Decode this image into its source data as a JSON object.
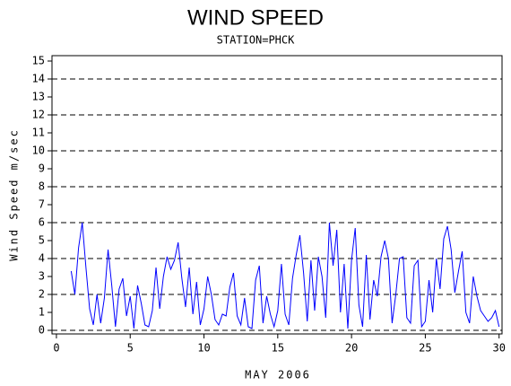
{
  "chart_data": {
    "type": "line",
    "title": "WIND SPEED",
    "subtitle": "STATION=PHCK",
    "y_label": "Wind Speed m/sec",
    "x_label": "MAY 2006",
    "xlim": [
      -0.3,
      30.2
    ],
    "xticks": [
      0,
      5,
      10,
      15,
      20,
      25,
      30
    ],
    "ylim": [
      -0.2,
      15.3
    ],
    "yticks": [
      0,
      1,
      2,
      3,
      4,
      5,
      6,
      7,
      8,
      9,
      10,
      11,
      12,
      13,
      14,
      15
    ],
    "grid_lines": [
      0,
      2,
      4,
      6,
      8,
      10,
      12,
      14
    ],
    "grid_style": "dashed",
    "x": [
      1,
      1.25,
      1.5,
      1.75,
      2,
      2.25,
      2.5,
      2.75,
      3,
      3.25,
      3.5,
      3.75,
      4,
      4.25,
      4.5,
      4.75,
      5,
      5.25,
      5.5,
      5.75,
      6,
      6.25,
      6.5,
      6.75,
      7,
      7.25,
      7.5,
      7.75,
      8,
      8.25,
      8.5,
      8.75,
      9,
      9.25,
      9.5,
      9.75,
      10,
      10.25,
      10.5,
      10.75,
      11,
      11.25,
      11.5,
      11.75,
      12,
      12.25,
      12.5,
      12.75,
      13,
      13.25,
      13.5,
      13.75,
      14,
      14.25,
      14.5,
      14.75,
      15,
      15.25,
      15.5,
      15.75,
      16,
      16.25,
      16.5,
      16.75,
      17,
      17.25,
      17.5,
      17.75,
      18,
      18.25,
      18.5,
      18.75,
      19,
      19.25,
      19.5,
      19.75,
      20,
      20.25,
      20.5,
      20.75,
      21,
      21.25,
      21.5,
      21.75,
      22,
      22.25,
      22.5,
      22.75,
      23,
      23.25,
      23.5,
      23.75,
      24,
      24.25,
      24.5,
      24.75,
      25,
      25.25,
      25.5,
      25.75,
      26,
      26.25,
      26.5,
      26.75,
      27,
      27.25,
      27.5,
      27.75,
      28,
      28.25,
      28.5,
      28.75,
      29,
      29.25,
      29.5,
      29.75,
      30
    ],
    "series": [
      {
        "color": "#0000ff",
        "values": [
          3.3,
          2.0,
          4.6,
          6.0,
          3.5,
          1.2,
          0.3,
          2.0,
          0.4,
          1.8,
          4.5,
          2.5,
          0.2,
          2.3,
          2.9,
          0.8,
          1.9,
          0.1,
          2.5,
          1.5,
          0.3,
          0.2,
          1.1,
          3.5,
          1.2,
          3.0,
          4.1,
          3.4,
          3.9,
          4.9,
          2.9,
          1.3,
          3.5,
          0.9,
          2.7,
          0.3,
          1.2,
          3.0,
          2.0,
          0.6,
          0.3,
          0.9,
          0.8,
          2.4,
          3.2,
          0.8,
          0.3,
          1.8,
          0.2,
          0.1,
          2.8,
          3.6,
          0.4,
          1.9,
          0.9,
          0.2,
          1.1,
          3.7,
          0.9,
          0.3,
          2.9,
          4.2,
          5.3,
          3.2,
          0.5,
          3.9,
          1.1,
          4.1,
          3.0,
          0.7,
          6.0,
          3.6,
          5.6,
          1.0,
          3.7,
          0.1,
          3.9,
          5.7,
          1.4,
          0.2,
          4.2,
          0.6,
          2.8,
          1.9,
          4.1,
          5.0,
          4.0,
          0.4,
          2.0,
          4.0,
          4.1,
          0.7,
          0.4,
          3.6,
          3.9,
          0.2,
          0.5,
          2.8,
          1.0,
          4.0,
          2.3,
          5.1,
          5.8,
          4.5,
          2.1,
          3.3,
          4.4,
          1.0,
          0.4,
          3.0,
          1.9,
          1.1,
          0.8,
          0.5,
          0.7,
          1.1,
          0.2
        ]
      }
    ]
  }
}
